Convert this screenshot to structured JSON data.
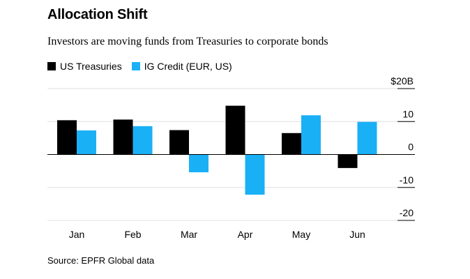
{
  "header": {
    "title": "Allocation Shift",
    "subtitle": "Investors are moving funds from Treasuries to corporate bonds"
  },
  "footer": {
    "source": "Source: EPFR Global data"
  },
  "colors": {
    "us_treasuries": "#000000",
    "ig_credit": "#1ab0f6",
    "axis": "#000000",
    "grid": "#e0e0e0"
  },
  "chart_data": {
    "type": "bar",
    "title": "Allocation Shift",
    "subtitle": "Investors are moving funds from Treasuries to corporate bonds",
    "categories": [
      "Jan",
      "Feb",
      "Mar",
      "Apr",
      "May",
      "Jun"
    ],
    "series": [
      {
        "name": "US Treasuries",
        "values": [
          10.4,
          10.6,
          7.4,
          14.8,
          6.5,
          -4.1
        ]
      },
      {
        "name": "IG Credit (EUR, US)",
        "values": [
          7.3,
          8.6,
          -5.4,
          -12.2,
          11.9,
          9.9
        ]
      }
    ],
    "yticks": [
      {
        "value": 20,
        "label": "$20B"
      },
      {
        "value": 10,
        "label": "10"
      },
      {
        "value": 0,
        "label": "0"
      },
      {
        "value": -10,
        "label": "-10"
      },
      {
        "value": -20,
        "label": "-20"
      }
    ],
    "ylim": [
      -20,
      20
    ],
    "grid": true,
    "legend": "top-left",
    "source": "Source: EPFR Global data"
  }
}
